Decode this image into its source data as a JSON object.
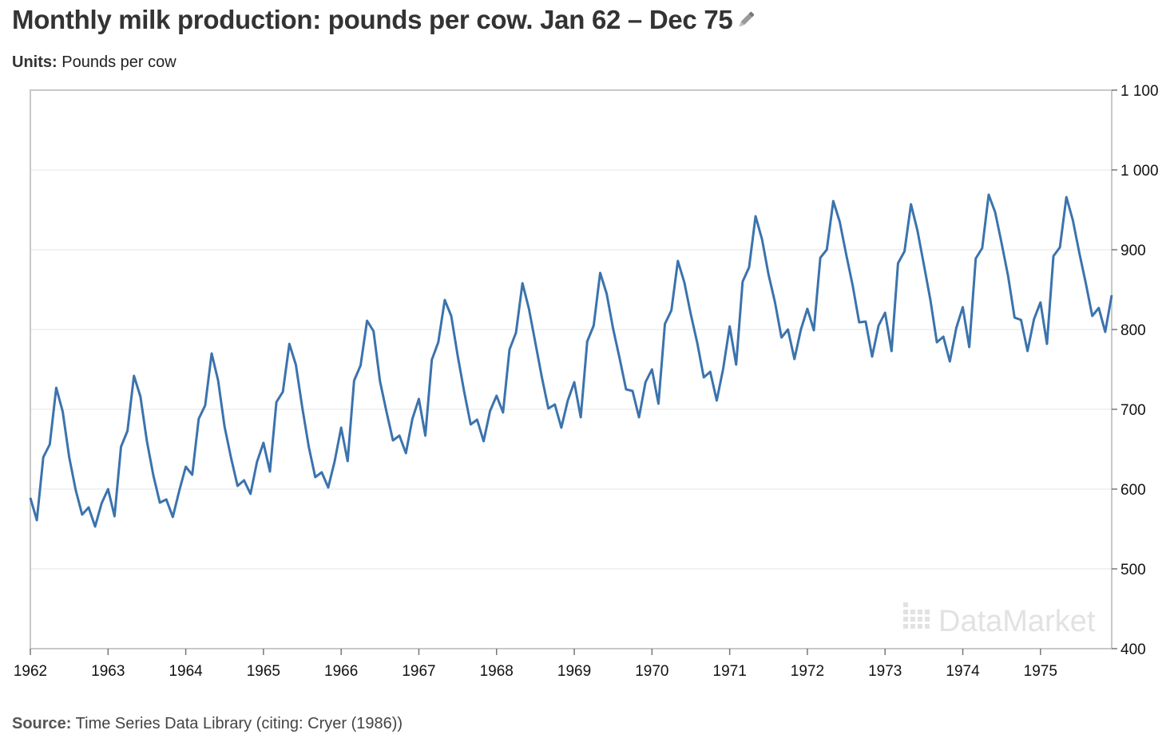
{
  "title": "Monthly milk production: pounds per cow. Jan 62 – Dec 75",
  "units_label": "Units:",
  "units_value": "Pounds per cow",
  "source_label": "Source:",
  "source_value": "Time Series Data Library (citing: Cryer (1986))",
  "watermark": "DataMarket",
  "edit_icon": "pencil-icon",
  "colors": {
    "line": "#3b73ad",
    "grid": "#e6e6e6",
    "frame": "#c8c8c8",
    "watermark": "#e2e2e2"
  },
  "chart_data": {
    "type": "line",
    "title": "Monthly milk production: pounds per cow. Jan 62 – Dec 75",
    "xlabel": "",
    "ylabel": "",
    "y_axis_position": "right",
    "x_ticks": [
      "1962",
      "1963",
      "1964",
      "1965",
      "1966",
      "1967",
      "1968",
      "1969",
      "1970",
      "1971",
      "1972",
      "1973",
      "1974",
      "1975"
    ],
    "y_ticks": [
      {
        "value": 400,
        "label": "400"
      },
      {
        "value": 500,
        "label": "500"
      },
      {
        "value": 600,
        "label": "600"
      },
      {
        "value": 700,
        "label": "700"
      },
      {
        "value": 800,
        "label": "800"
      },
      {
        "value": 900,
        "label": "900"
      },
      {
        "value": 1000,
        "label": "1 000"
      },
      {
        "value": 1100,
        "label": "1 100"
      }
    ],
    "ylim": [
      400,
      1100
    ],
    "xlim": [
      "1962-01",
      "1975-12"
    ],
    "grid": true,
    "series": [
      {
        "start": "1962-01",
        "frequency": "monthly",
        "values": [
          589,
          561,
          640,
          656,
          727,
          697,
          640,
          599,
          568,
          577,
          553,
          582,
          600,
          566,
          653,
          673,
          742,
          716,
          660,
          617,
          583,
          587,
          565,
          598,
          628,
          618,
          688,
          705,
          770,
          736,
          678,
          639,
          604,
          611,
          594,
          634,
          658,
          622,
          709,
          722,
          782,
          756,
          702,
          653,
          615,
          621,
          602,
          635,
          677,
          635,
          736,
          755,
          811,
          798,
          735,
          697,
          661,
          667,
          645,
          688,
          713,
          667,
          762,
          784,
          837,
          817,
          767,
          722,
          681,
          687,
          660,
          698,
          717,
          696,
          775,
          796,
          858,
          826,
          783,
          740,
          701,
          706,
          677,
          711,
          734,
          690,
          785,
          805,
          871,
          845,
          801,
          764,
          725,
          723,
          690,
          734,
          750,
          707,
          807,
          824,
          886,
          859,
          819,
          783,
          740,
          747,
          711,
          751,
          804,
          756,
          860,
          878,
          942,
          913,
          869,
          834,
          790,
          800,
          763,
          800,
          826,
          799,
          890,
          900,
          961,
          935,
          894,
          855,
          809,
          810,
          766,
          805,
          821,
          773,
          883,
          898,
          957,
          924,
          881,
          837,
          784,
          791,
          760,
          802,
          828,
          778,
          889,
          902,
          969,
          947,
          908,
          867,
          815,
          812,
          773,
          813,
          834,
          782,
          892,
          903,
          966,
          937,
          896,
          858,
          817,
          827,
          797,
          843
        ]
      }
    ]
  }
}
